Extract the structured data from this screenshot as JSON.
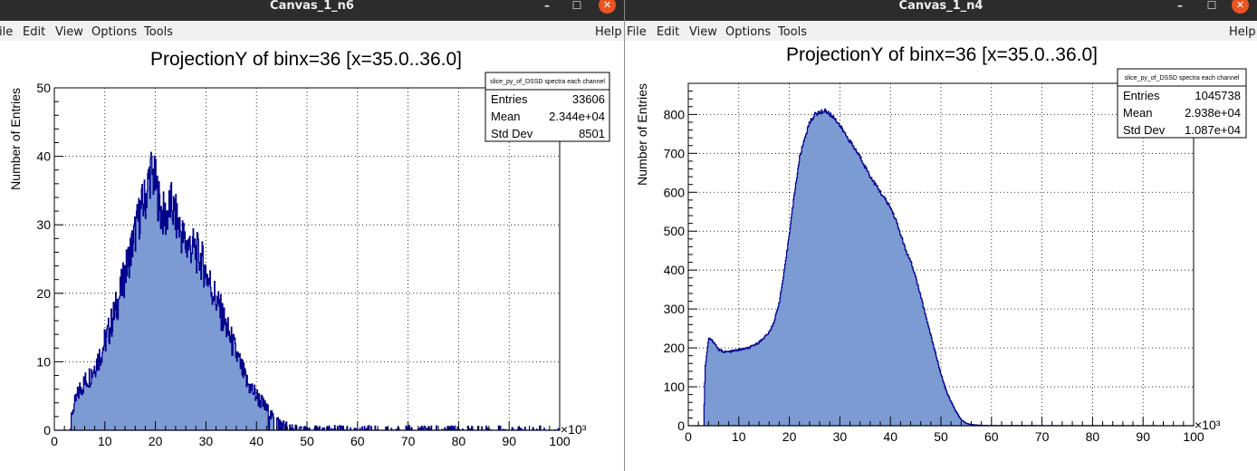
{
  "windows": [
    {
      "title": "Canvas_1_n6",
      "menu": [
        "ile",
        "Edit",
        "View",
        "Options",
        "Tools"
      ],
      "help": "Help",
      "stats": {
        "title": "slice_py_of_DSSD spectra each channel",
        "rows": [
          [
            "Entries",
            "33606"
          ],
          [
            "Mean",
            "2.344e+04"
          ],
          [
            "Std Dev",
            "8501"
          ]
        ]
      }
    },
    {
      "title": "Canvas_1_n4",
      "menu": [
        "File",
        "Edit",
        "View",
        "Options",
        "Tools"
      ],
      "help": "Help",
      "stats": {
        "title": "slice_py_of_DSSD spectra each channel",
        "rows": [
          [
            "Entries",
            "1045738"
          ],
          [
            "Mean",
            "2.938e+04"
          ],
          [
            "Std Dev",
            "1.087e+04"
          ]
        ]
      }
    }
  ],
  "chart_data": [
    {
      "type": "area",
      "title": "ProjectionY of binx=36 [x=35.0..36.0]",
      "xlabel": "",
      "ylabel": "Number of Entries",
      "x_unit": "×10³",
      "xlim": [
        0,
        100
      ],
      "ylim": [
        0,
        50
      ],
      "xticks": [
        "0",
        "10",
        "20",
        "30",
        "40",
        "50",
        "60",
        "70",
        "80",
        "90",
        "100"
      ],
      "yticks": [
        "0",
        "10",
        "20",
        "30",
        "40",
        "50"
      ],
      "grid": true,
      "fill_color": "#7b9bd2",
      "line_color": "#00008b",
      "x": [
        0,
        3,
        3.6,
        5,
        7,
        9,
        11,
        13,
        15,
        17,
        18,
        19,
        20,
        21,
        22,
        23,
        24,
        25,
        26,
        27,
        28,
        29,
        30,
        31,
        32,
        33,
        34,
        35,
        36,
        37,
        38,
        39,
        40,
        41,
        42,
        43,
        44,
        45,
        46,
        48,
        50,
        100
      ],
      "values": [
        0,
        0,
        3,
        6,
        8,
        11,
        15,
        20,
        26,
        32,
        34,
        38,
        36,
        32,
        31,
        33,
        31,
        29,
        27,
        27,
        26,
        25,
        23,
        21,
        19,
        17,
        15,
        13,
        11,
        9,
        7,
        6,
        5,
        4,
        3,
        2,
        1.5,
        1,
        0.7,
        0.3,
        0.1,
        0
      ]
    },
    {
      "type": "area",
      "title": "ProjectionY of binx=36 [x=35.0..36.0]",
      "xlabel": "",
      "ylabel": "Number of Entries",
      "x_unit": "×10³",
      "xlim": [
        0,
        100
      ],
      "ylim": [
        0,
        880
      ],
      "xticks": [
        "0",
        "10",
        "20",
        "30",
        "40",
        "50",
        "60",
        "70",
        "80",
        "90",
        "100"
      ],
      "yticks": [
        "0",
        "100",
        "200",
        "300",
        "400",
        "500",
        "600",
        "700",
        "800"
      ],
      "grid": true,
      "fill_color": "#7b9bd2",
      "line_color": "#00008b",
      "x": [
        0,
        3,
        3.3,
        4,
        5,
        6,
        7,
        8,
        10,
        12,
        14,
        16,
        17,
        18,
        19,
        20,
        21,
        22,
        23,
        24,
        25,
        26,
        27,
        28,
        29,
        30,
        32,
        34,
        36,
        38,
        40,
        41,
        42,
        43,
        44,
        45,
        46,
        47,
        48,
        49,
        50,
        51,
        52,
        53,
        54,
        55,
        56,
        58,
        60,
        100
      ],
      "values": [
        0,
        0,
        150,
        225,
        215,
        195,
        190,
        190,
        195,
        200,
        215,
        240,
        270,
        320,
        400,
        500,
        600,
        690,
        740,
        780,
        800,
        805,
        810,
        800,
        790,
        770,
        730,
        690,
        640,
        600,
        560,
        530,
        490,
        450,
        420,
        380,
        330,
        280,
        230,
        180,
        130,
        90,
        60,
        35,
        15,
        6,
        3,
        1,
        0.5,
        0
      ]
    }
  ]
}
